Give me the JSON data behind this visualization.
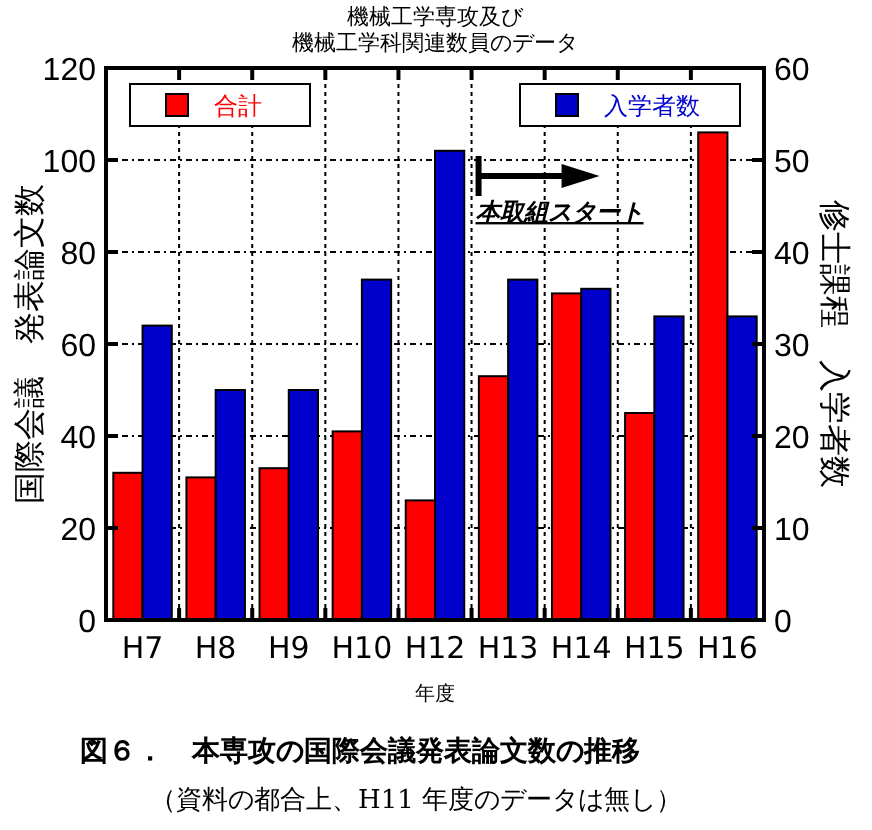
{
  "chart_data": {
    "type": "bar",
    "title": "機械工学専攻及び機械工学科関連数員のデータ",
    "xlabel": "年度",
    "ylabel": "国際会議　発表論文数",
    "y2label": "修士課程　入学者数",
    "categories": [
      "H7",
      "H8",
      "H9",
      "H10",
      "H12",
      "H13",
      "H14",
      "H15",
      "H16"
    ],
    "series": [
      {
        "name": "合計",
        "color": "#ff0000",
        "values": [
          32,
          31,
          33,
          41,
          26,
          53,
          71,
          45,
          106
        ]
      },
      {
        "name": "入学者数",
        "color": "#0000cc",
        "axis": "y2",
        "values": [
          32,
          25,
          25,
          37,
          51,
          37,
          36,
          33,
          33
        ]
      }
    ],
    "ylim": [
      0,
      120
    ],
    "yticks": [
      0,
      20,
      40,
      60,
      80,
      100,
      120
    ],
    "y2lim": [
      0,
      60
    ],
    "y2ticks": [
      0,
      10,
      20,
      30,
      40,
      50,
      60
    ],
    "grid": true,
    "legend": "top",
    "annotations": [
      "本取組スタート",
      "図６．　本専攻の国際会議発表論文数の推移",
      "（資料の都合上、H11 年度のデータは無し）"
    ]
  }
}
